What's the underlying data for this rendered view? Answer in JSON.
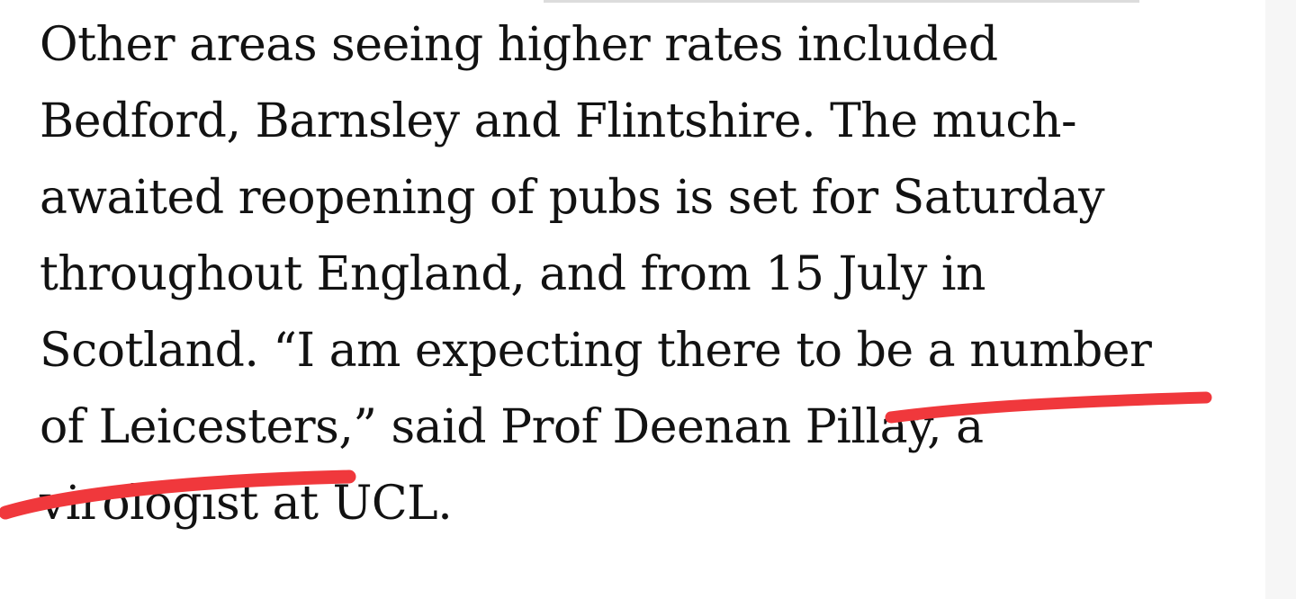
{
  "article": {
    "lines": [
      "Other areas seeing higher rates included",
      "Bedford, Barnsley and Flintshire. The much-",
      "awaited reopening of pubs is set for Saturday",
      "throughout England, and from 15 July in",
      "Scotland. “I am expecting there to be a number",
      "of Leicesters,” said Prof Deenan Pillay, a",
      "virologist at UCL."
    ]
  },
  "annotations": {
    "stroke_color": "#f0383c"
  }
}
